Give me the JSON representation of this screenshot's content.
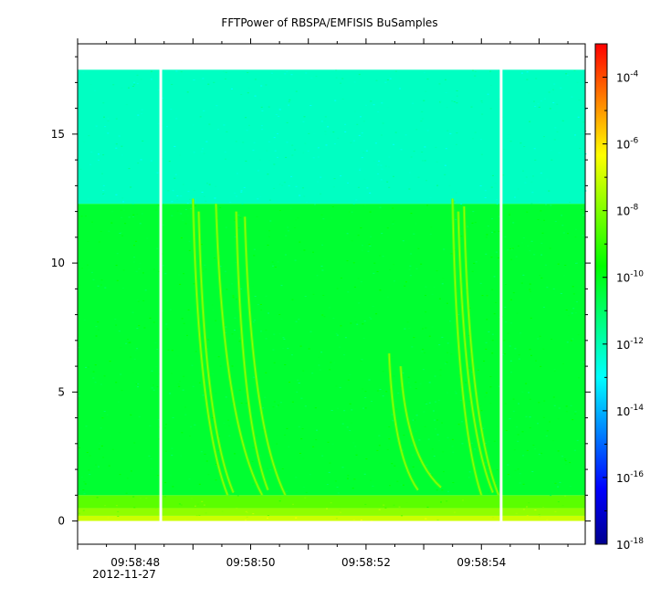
{
  "chart_data": {
    "type": "heatmap",
    "title": "FFTPower of RBSPA/EMFISIS  BuSamples",
    "xlabel": "",
    "ylabel": "",
    "x_ticks": [
      "09:58:48",
      "09:58:50",
      "09:58:52",
      "09:58:54"
    ],
    "x_date_label": "2012-11-27",
    "x_range_seconds": [
      47.0,
      55.8
    ],
    "x_tick_seconds": [
      48,
      50,
      52,
      54
    ],
    "ylim": [
      -0.9,
      18.5
    ],
    "y_ticks": [
      0,
      5,
      10,
      15
    ],
    "colorbar": {
      "scale": "log",
      "range": [
        1e-18,
        0.001
      ],
      "ticks": [
        {
          "base": "10",
          "exp": "-4",
          "value": 0.0001
        },
        {
          "base": "10",
          "exp": "-6",
          "value": 1e-06
        },
        {
          "base": "10",
          "exp": "-8",
          "value": 1e-08
        },
        {
          "base": "10",
          "exp": "-10",
          "value": 1e-10
        },
        {
          "base": "10",
          "exp": "-12",
          "value": 1e-12
        },
        {
          "base": "10",
          "exp": "-14",
          "value": 1e-14
        },
        {
          "base": "10",
          "exp": "-16",
          "value": 1e-16
        },
        {
          "base": "10",
          "exp": "-18",
          "value": 1e-18
        }
      ],
      "colors": [
        "#00008f",
        "#0000ff",
        "#0080ff",
        "#00ffff",
        "#00ff80",
        "#00ff00",
        "#80ff00",
        "#ffff00",
        "#ff8000",
        "#ff0000"
      ]
    },
    "data_extent_y": [
      0,
      17.5
    ],
    "bands": [
      {
        "y_from": 0.0,
        "y_to": 0.2,
        "log10_power": -7.0
      },
      {
        "y_from": 0.2,
        "y_to": 0.5,
        "log10_power": -7.8
      },
      {
        "y_from": 0.5,
        "y_to": 1.0,
        "log10_power": -8.5
      },
      {
        "y_from": 1.0,
        "y_to": 12.3,
        "log10_power": -10.3
      },
      {
        "y_from": 12.3,
        "y_to": 17.5,
        "log10_power": -12.2
      }
    ],
    "gaps_seconds": [
      48.45,
      54.35
    ],
    "chorus_elements": [
      {
        "t_start": 49.0,
        "t_end": 49.6,
        "f_top": 12.5,
        "f_bottom": 1.0
      },
      {
        "t_start": 49.1,
        "t_end": 49.7,
        "f_top": 12.0,
        "f_bottom": 1.1
      },
      {
        "t_start": 49.4,
        "t_end": 50.2,
        "f_top": 12.3,
        "f_bottom": 1.0
      },
      {
        "t_start": 49.75,
        "t_end": 50.3,
        "f_top": 12.0,
        "f_bottom": 1.2
      },
      {
        "t_start": 49.9,
        "t_end": 50.6,
        "f_top": 11.8,
        "f_bottom": 1.0
      },
      {
        "t_start": 52.4,
        "t_end": 52.9,
        "f_top": 6.5,
        "f_bottom": 1.2
      },
      {
        "t_start": 52.6,
        "t_end": 53.3,
        "f_top": 6.0,
        "f_bottom": 1.3
      },
      {
        "t_start": 53.5,
        "t_end": 54.0,
        "f_top": 12.5,
        "f_bottom": 1.0
      },
      {
        "t_start": 53.6,
        "t_end": 54.2,
        "f_top": 12.0,
        "f_bottom": 1.1
      },
      {
        "t_start": 53.7,
        "t_end": 54.3,
        "f_top": 12.2,
        "f_bottom": 1.0
      }
    ]
  }
}
